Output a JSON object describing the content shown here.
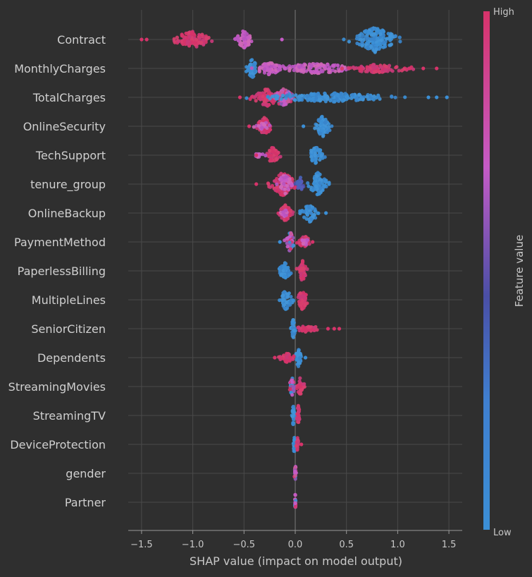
{
  "chart_data": {
    "type": "scatter",
    "subtype": "shap-beeswarm",
    "xlabel": "SHAP value (impact on model output)",
    "xlim": [
      -1.63,
      1.63
    ],
    "xticks": [
      -1.5,
      -1.0,
      -0.5,
      0.0,
      0.5,
      1.0,
      1.5
    ],
    "xtick_labels": [
      "−1.5",
      "−1.0",
      "−0.5",
      "0.0",
      "0.5",
      "1.0",
      "1.5"
    ],
    "grid": true,
    "colorbar": {
      "label": "Feature value",
      "high_label": "High",
      "low_label": "Low",
      "high_color": "#d6336a",
      "mid_color": "#c55bc6",
      "mid2_color": "#4a4fa6",
      "low_color": "#3b8fd6"
    },
    "features": [
      {
        "name": "Contract",
        "clusters": [
          {
            "center": -1.0,
            "spread": 0.16,
            "height": 0.9,
            "count": 100,
            "color": "high"
          },
          {
            "center": -0.5,
            "spread": 0.07,
            "height": 1.0,
            "count": 60,
            "color": "mid"
          },
          {
            "center": 0.78,
            "spread": 0.16,
            "height": 1.4,
            "count": 170,
            "color": "low"
          }
        ],
        "outliers": [
          [
            -1.5,
            "high"
          ],
          [
            -1.45,
            "high"
          ],
          [
            -0.13,
            "mid"
          ]
        ]
      },
      {
        "name": "MonthlyCharges",
        "clusters": [
          {
            "center": -0.42,
            "spread": 0.05,
            "height": 1.0,
            "count": 50,
            "color": "low"
          },
          {
            "center": -0.25,
            "spread": 0.12,
            "height": 0.7,
            "count": 60,
            "color": "mid"
          },
          {
            "center": 0.2,
            "spread": 0.35,
            "height": 0.55,
            "count": 130,
            "color": "mid"
          },
          {
            "center": 0.8,
            "spread": 0.3,
            "height": 0.45,
            "count": 90,
            "color": "high"
          }
        ],
        "outliers": [
          [
            1.25,
            "high"
          ],
          [
            1.38,
            "high"
          ],
          [
            1.12,
            "high"
          ]
        ]
      },
      {
        "name": "TotalCharges",
        "clusters": [
          {
            "center": -0.28,
            "spread": 0.1,
            "height": 1.0,
            "count": 90,
            "color": "high"
          },
          {
            "center": -0.12,
            "spread": 0.08,
            "height": 1.0,
            "count": 70,
            "color": "mix"
          },
          {
            "center": 0.35,
            "spread": 0.5,
            "height": 0.5,
            "count": 190,
            "color": "low"
          }
        ],
        "outliers": [
          [
            -0.54,
            "high"
          ],
          [
            1.48,
            "low"
          ],
          [
            1.38,
            "low"
          ],
          [
            1.3,
            "low"
          ]
        ]
      },
      {
        "name": "OnlineSecurity",
        "clusters": [
          {
            "center": -0.3,
            "spread": 0.06,
            "height": 0.95,
            "count": 55,
            "color": "high"
          },
          {
            "center": -0.3,
            "spread": 0.05,
            "height": 0.6,
            "count": 20,
            "color": "mid"
          },
          {
            "center": 0.27,
            "spread": 0.06,
            "height": 1.2,
            "count": 70,
            "color": "low"
          }
        ],
        "outliers": [
          [
            -0.45,
            "high"
          ],
          [
            0.08,
            "low"
          ]
        ]
      },
      {
        "name": "TechSupport",
        "clusters": [
          {
            "center": -0.22,
            "spread": 0.05,
            "height": 0.9,
            "count": 45,
            "color": "high"
          },
          {
            "center": -0.35,
            "spread": 0.04,
            "height": 0.4,
            "count": 10,
            "color": "mid"
          },
          {
            "center": 0.2,
            "spread": 0.07,
            "height": 0.9,
            "count": 55,
            "color": "low"
          }
        ],
        "outliers": [
          [
            -0.38,
            "high"
          ]
        ]
      },
      {
        "name": "tenure_group",
        "clusters": [
          {
            "center": -0.12,
            "spread": 0.1,
            "height": 1.3,
            "count": 100,
            "color": "high"
          },
          {
            "center": -0.1,
            "spread": 0.06,
            "height": 1.1,
            "count": 40,
            "color": "mid"
          },
          {
            "center": 0.05,
            "spread": 0.03,
            "height": 0.8,
            "count": 30,
            "color": "mid2"
          },
          {
            "center": 0.22,
            "spread": 0.07,
            "height": 1.3,
            "count": 80,
            "color": "low"
          }
        ],
        "outliers": [
          [
            -0.38,
            "high"
          ],
          [
            0.33,
            "low"
          ]
        ]
      },
      {
        "name": "OnlineBackup",
        "clusters": [
          {
            "center": -0.1,
            "spread": 0.05,
            "height": 1.0,
            "count": 50,
            "color": "high"
          },
          {
            "center": -0.1,
            "spread": 0.03,
            "height": 0.5,
            "count": 15,
            "color": "mid"
          },
          {
            "center": 0.14,
            "spread": 0.07,
            "height": 1.0,
            "count": 55,
            "color": "low"
          }
        ],
        "outliers": [
          [
            0.3,
            "low"
          ]
        ]
      },
      {
        "name": "PaymentMethod",
        "clusters": [
          {
            "center": -0.05,
            "spread": 0.03,
            "height": 1.2,
            "count": 40,
            "color": "mix"
          },
          {
            "center": 0.09,
            "spread": 0.05,
            "height": 0.7,
            "count": 35,
            "color": "high"
          },
          {
            "center": 0.09,
            "spread": 0.04,
            "height": 0.4,
            "count": 15,
            "color": "mid"
          }
        ],
        "outliers": [
          [
            -0.15,
            "low"
          ],
          [
            0.17,
            "high"
          ]
        ]
      },
      {
        "name": "PaperlessBilling",
        "clusters": [
          {
            "center": -0.1,
            "spread": 0.05,
            "height": 0.9,
            "count": 60,
            "color": "low"
          },
          {
            "center": 0.07,
            "spread": 0.03,
            "height": 1.2,
            "count": 55,
            "color": "high"
          }
        ],
        "outliers": []
      },
      {
        "name": "MultipleLines",
        "clusters": [
          {
            "center": -0.09,
            "spread": 0.05,
            "height": 1.1,
            "count": 60,
            "color": "low"
          },
          {
            "center": 0.07,
            "spread": 0.04,
            "height": 1.1,
            "count": 55,
            "color": "high"
          }
        ],
        "outliers": []
      },
      {
        "name": "SeniorCitizen",
        "clusters": [
          {
            "center": -0.02,
            "spread": 0.015,
            "height": 1.1,
            "count": 40,
            "color": "low"
          },
          {
            "center": 0.12,
            "spread": 0.09,
            "height": 0.4,
            "count": 40,
            "color": "high"
          }
        ],
        "outliers": [
          [
            0.43,
            "high"
          ],
          [
            0.38,
            "high"
          ],
          [
            0.32,
            "high"
          ]
        ]
      },
      {
        "name": "Dependents",
        "clusters": [
          {
            "center": -0.08,
            "spread": 0.06,
            "height": 0.5,
            "count": 40,
            "color": "high"
          },
          {
            "center": 0.03,
            "spread": 0.02,
            "height": 1.1,
            "count": 40,
            "color": "low"
          }
        ],
        "outliers": [
          [
            -0.2,
            "high"
          ],
          [
            0.1,
            "low"
          ]
        ]
      },
      {
        "name": "StreamingMovies",
        "clusters": [
          {
            "center": -0.03,
            "spread": 0.02,
            "height": 1.0,
            "count": 40,
            "color": "mix"
          },
          {
            "center": 0.05,
            "spread": 0.03,
            "height": 1.0,
            "count": 40,
            "color": "high"
          }
        ],
        "outliers": []
      },
      {
        "name": "StreamingTV",
        "clusters": [
          {
            "center": -0.02,
            "spread": 0.012,
            "height": 1.1,
            "count": 30,
            "color": "low"
          },
          {
            "center": 0.03,
            "spread": 0.012,
            "height": 1.1,
            "count": 30,
            "color": "high"
          }
        ],
        "outliers": []
      },
      {
        "name": "DeviceProtection",
        "clusters": [
          {
            "center": -0.01,
            "spread": 0.008,
            "height": 1.0,
            "count": 25,
            "color": "low"
          },
          {
            "center": 0.02,
            "spread": 0.01,
            "height": 0.8,
            "count": 20,
            "color": "high"
          }
        ],
        "outliers": [
          [
            0.06,
            "high"
          ]
        ]
      },
      {
        "name": "gender",
        "clusters": [
          {
            "center": 0.0,
            "spread": 0.007,
            "height": 1.0,
            "count": 30,
            "color": "mix"
          }
        ],
        "outliers": []
      },
      {
        "name": "Partner",
        "clusters": [
          {
            "center": 0.0,
            "spread": 0.003,
            "height": 1.0,
            "count": 25,
            "color": "mix"
          }
        ],
        "outliers": []
      }
    ]
  }
}
